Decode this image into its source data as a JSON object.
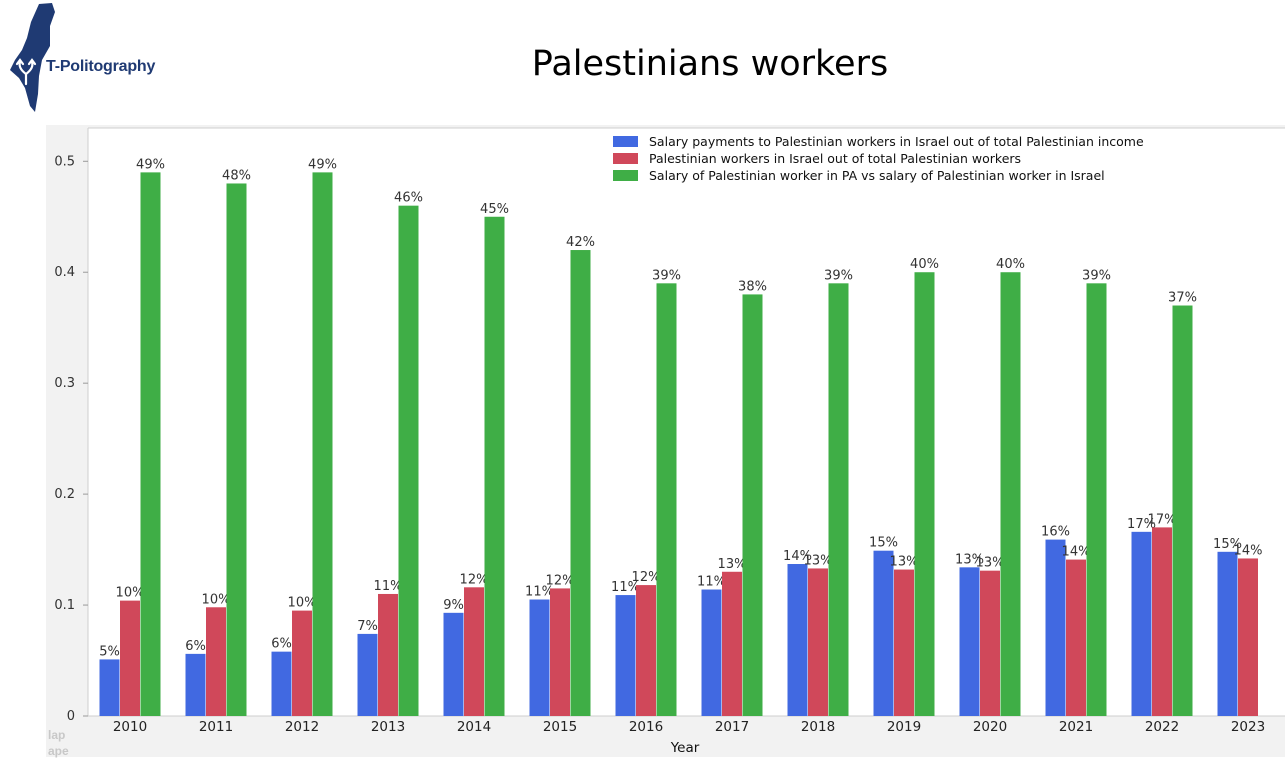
{
  "header": {
    "logo_text": "T-Politography",
    "title": "Palestinians workers"
  },
  "panel_ghost": [
    "lap",
    "ape"
  ],
  "colors": {
    "blue": "#4169e1",
    "red": "#d0485a",
    "green": "#3fae46",
    "logo": "#1f3a73"
  },
  "chart_data": {
    "type": "bar",
    "title": "Palestinians workers",
    "xlabel": "Year",
    "ylabel": "",
    "ylim": [
      0,
      0.53
    ],
    "yticks": [
      "0",
      "0.1",
      "0.2",
      "0.3",
      "0.4",
      "0.5"
    ],
    "grid": false,
    "legend_position": "top-right",
    "categories": [
      "2010",
      "2011",
      "2012",
      "2013",
      "2014",
      "2015",
      "2016",
      "2017",
      "2018",
      "2019",
      "2020",
      "2021",
      "2022",
      "2023"
    ],
    "series": [
      {
        "name": "Salary payments to Palestinian workers in Israel out of total Palestinian income",
        "color": "#4169e1",
        "values": [
          0.051,
          0.056,
          0.058,
          0.074,
          0.093,
          0.105,
          0.109,
          0.114,
          0.137,
          0.149,
          0.134,
          0.159,
          0.166,
          0.148
        ],
        "labels": [
          "5%",
          "6%",
          "6%",
          "7%",
          "9%",
          "11%",
          "11%",
          "11%",
          "14%",
          "15%",
          "13%",
          "16%",
          "17%",
          "15%"
        ]
      },
      {
        "name": "Palestinian workers in Israel out of total Palestinian workers",
        "color": "#d0485a",
        "values": [
          0.104,
          0.098,
          0.095,
          0.11,
          0.116,
          0.115,
          0.118,
          0.13,
          0.133,
          0.132,
          0.131,
          0.141,
          0.17,
          0.142
        ],
        "labels": [
          "10%",
          "10%",
          "10%",
          "11%",
          "12%",
          "12%",
          "12%",
          "13%",
          "13%",
          "13%",
          "13%",
          "14%",
          "17%",
          "14%"
        ]
      },
      {
        "name": "Salary of Palestinian worker in PA vs salary of Palestinian worker in Israel",
        "color": "#3fae46",
        "values": [
          0.49,
          0.48,
          0.49,
          0.46,
          0.45,
          0.42,
          0.39,
          0.38,
          0.39,
          0.4,
          0.4,
          0.39,
          0.37,
          null
        ],
        "labels": [
          "49%",
          "48%",
          "49%",
          "46%",
          "45%",
          "42%",
          "39%",
          "38%",
          "39%",
          "40%",
          "40%",
          "39%",
          "37%",
          null
        ]
      }
    ]
  }
}
